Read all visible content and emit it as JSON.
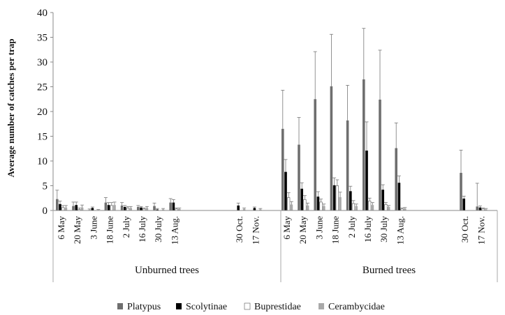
{
  "chart_data": {
    "type": "bar",
    "ylabel": "Average number of catches per trap",
    "ylim": [
      0,
      40
    ],
    "yticks": [
      0,
      5,
      10,
      15,
      20,
      25,
      30,
      35,
      40
    ],
    "legend_position": "bottom",
    "grid": false,
    "groups": [
      {
        "name": "Unburned trees",
        "categories": [
          "6 May",
          "20 May",
          "3 June",
          "18 June",
          "2 July",
          "16 July",
          "30 July",
          "13 Aug.",
          "30 Oct.",
          "17 Nov."
        ],
        "series": [
          {
            "name": "Platypus",
            "values": [
              2.3,
              0.9,
              0.1,
              1.6,
              1.0,
              0.7,
              0.9,
              1.6,
              0,
              0
            ],
            "errors": [
              1.8,
              0.8,
              0.2,
              1.0,
              0.6,
              0.3,
              0.6,
              0.8,
              0,
              0
            ]
          },
          {
            "name": "Scolytinae",
            "values": [
              1.3,
              1.1,
              0.5,
              1.1,
              0.7,
              0.6,
              0.2,
              1.6,
              1.0,
              0.5
            ],
            "errors": [
              0.6,
              0.6,
              0.2,
              0.5,
              0.3,
              0.2,
              0.2,
              0.6,
              0.5,
              0.2
            ]
          },
          {
            "name": "Buprestidae",
            "values": [
              0.6,
              0.2,
              0,
              1.0,
              0.5,
              0.3,
              0,
              0.3,
              0,
              0
            ],
            "errors": [
              0.4,
              0.3,
              0,
              0.6,
              0.3,
              0.2,
              0,
              0.2,
              0,
              0
            ]
          },
          {
            "name": "Cerambycidae",
            "values": [
              0.6,
              0.6,
              0.1,
              1.1,
              0.5,
              0.5,
              0.2,
              0.3,
              0.3,
              0.2
            ],
            "errors": [
              0.4,
              0.5,
              0.1,
              0.6,
              0.3,
              0.3,
              0.2,
              0.2,
              0.2,
              0.2
            ]
          }
        ]
      },
      {
        "name": "Burned trees",
        "categories": [
          "6 May",
          "20 May",
          "3 June",
          "18 June",
          "2 July",
          "16 July",
          "30 July",
          "13 Aug.",
          "30 Oct.",
          "17 Nov."
        ],
        "series": [
          {
            "name": "Platypus",
            "values": [
              16.5,
              13.3,
              22.5,
              25.1,
              18.2,
              26.5,
              22.4,
              12.6,
              7.6,
              0.8
            ],
            "errors": [
              7.8,
              5.5,
              9.6,
              10.5,
              7.1,
              10.3,
              10.0,
              5.1,
              4.6,
              4.7
            ]
          },
          {
            "name": "Scolytinae",
            "values": [
              7.8,
              4.4,
              2.8,
              5.1,
              3.9,
              12.1,
              4.2,
              5.6,
              2.4,
              0.6
            ],
            "errors": [
              2.5,
              1.2,
              1.0,
              1.5,
              1.0,
              5.8,
              1.0,
              1.4,
              0.5,
              0.3
            ]
          },
          {
            "name": "Buprestidae",
            "values": [
              2.6,
              2.2,
              1.7,
              5.0,
              1.4,
              1.9,
              1.2,
              0.3,
              0,
              0.3
            ],
            "errors": [
              1.0,
              0.8,
              0.6,
              1.2,
              0.6,
              0.6,
              0.4,
              0.2,
              0,
              0.2
            ]
          },
          {
            "name": "Cerambycidae",
            "values": [
              1.2,
              1.0,
              0.9,
              2.7,
              0.9,
              1.1,
              0.7,
              0.4,
              0,
              0.2
            ],
            "errors": [
              0.6,
              0.5,
              0.4,
              1.0,
              0.4,
              0.5,
              0.3,
              0.2,
              0,
              0.2
            ]
          }
        ]
      }
    ],
    "colors": {
      "Platypus": "#6f6f6f",
      "Scolytinae": "#000000",
      "Buprestidae": "#ffffff",
      "Cerambycidae": "#a9a9a9"
    }
  }
}
